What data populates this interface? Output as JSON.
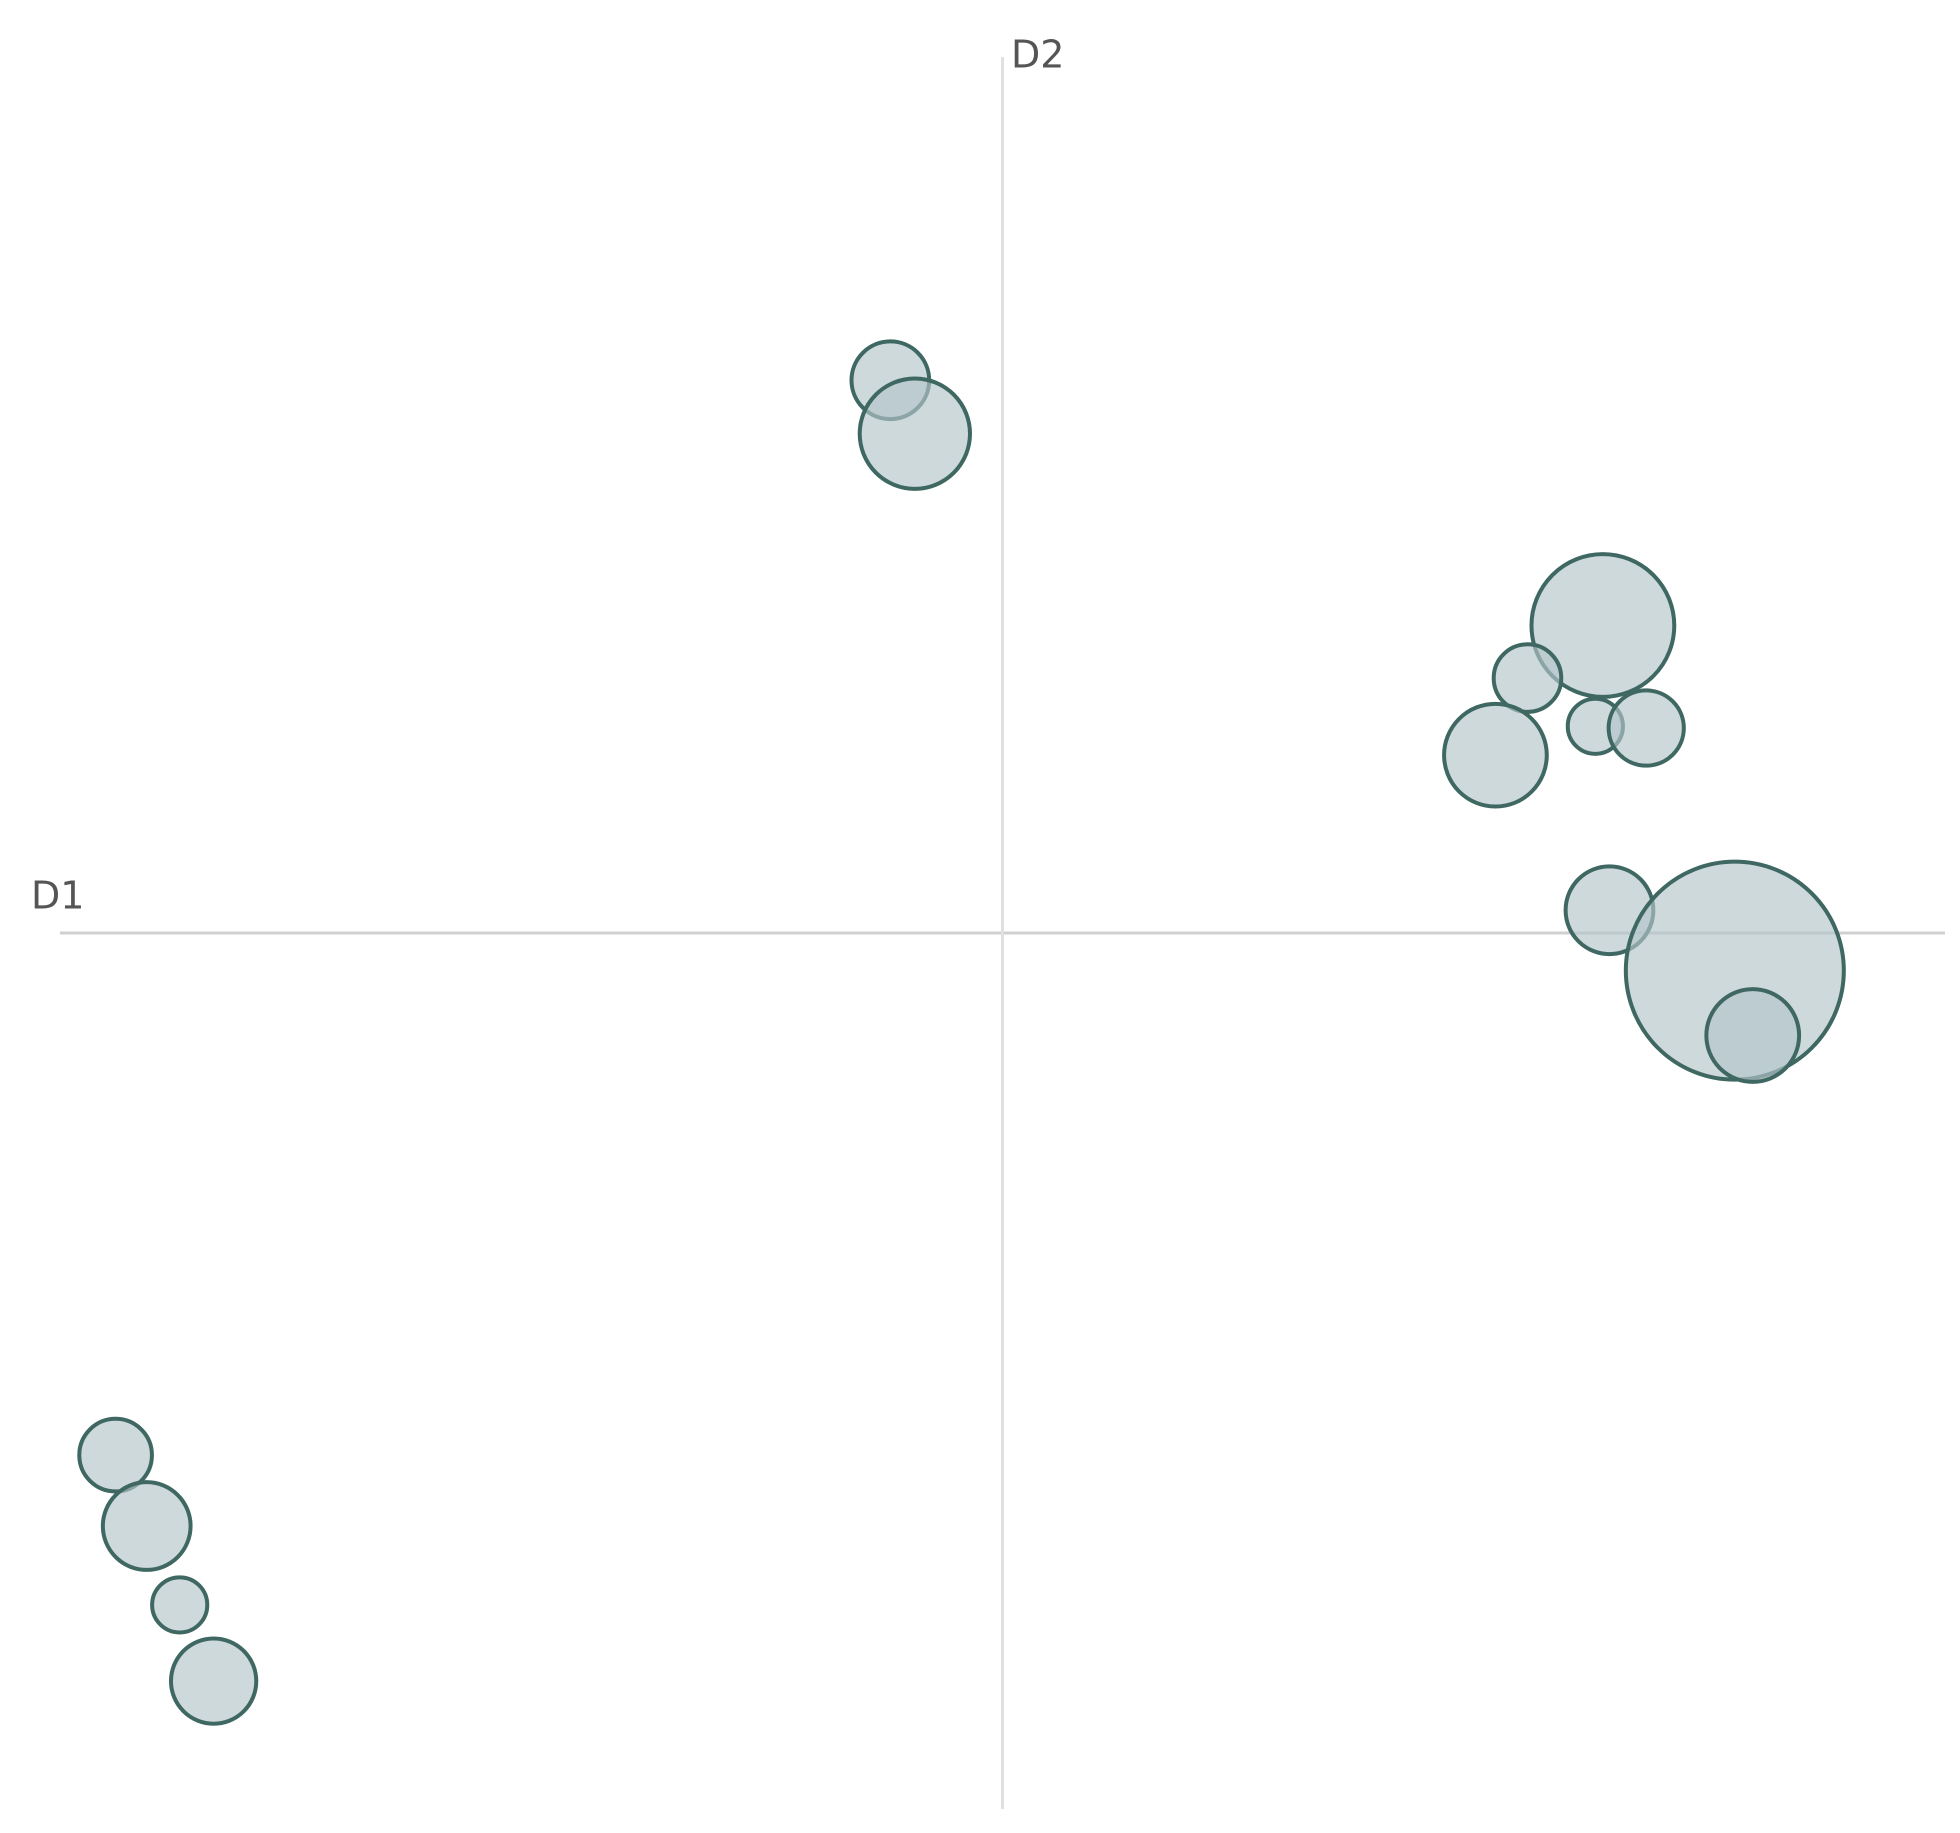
{
  "chart_data": {
    "type": "bubble",
    "x_label": "D1",
    "y_label": "D2",
    "xlim": [
      -1,
      1
    ],
    "ylim": [
      -1,
      1
    ],
    "color": "#b4c4ca",
    "edge_color": "#3f6863",
    "x": [
      -0.119,
      -0.093,
      0.637,
      0.557,
      0.629,
      0.683,
      0.523,
      0.644,
      0.777,
      0.796,
      -0.941,
      -0.908,
      -0.873,
      -0.837
    ],
    "y": [
      0.631,
      0.57,
      0.351,
      0.291,
      0.236,
      0.234,
      0.203,
      0.026,
      -0.043,
      -0.117,
      -0.596,
      -0.677,
      -0.767,
      -0.854
    ],
    "sizes": [
      12.7,
      25.6,
      42.9,
      9.6,
      6.4,
      11.9,
      22.2,
      16.2,
      100,
      18.1,
      11.1,
      16.2,
      6.4,
      15.3
    ]
  }
}
